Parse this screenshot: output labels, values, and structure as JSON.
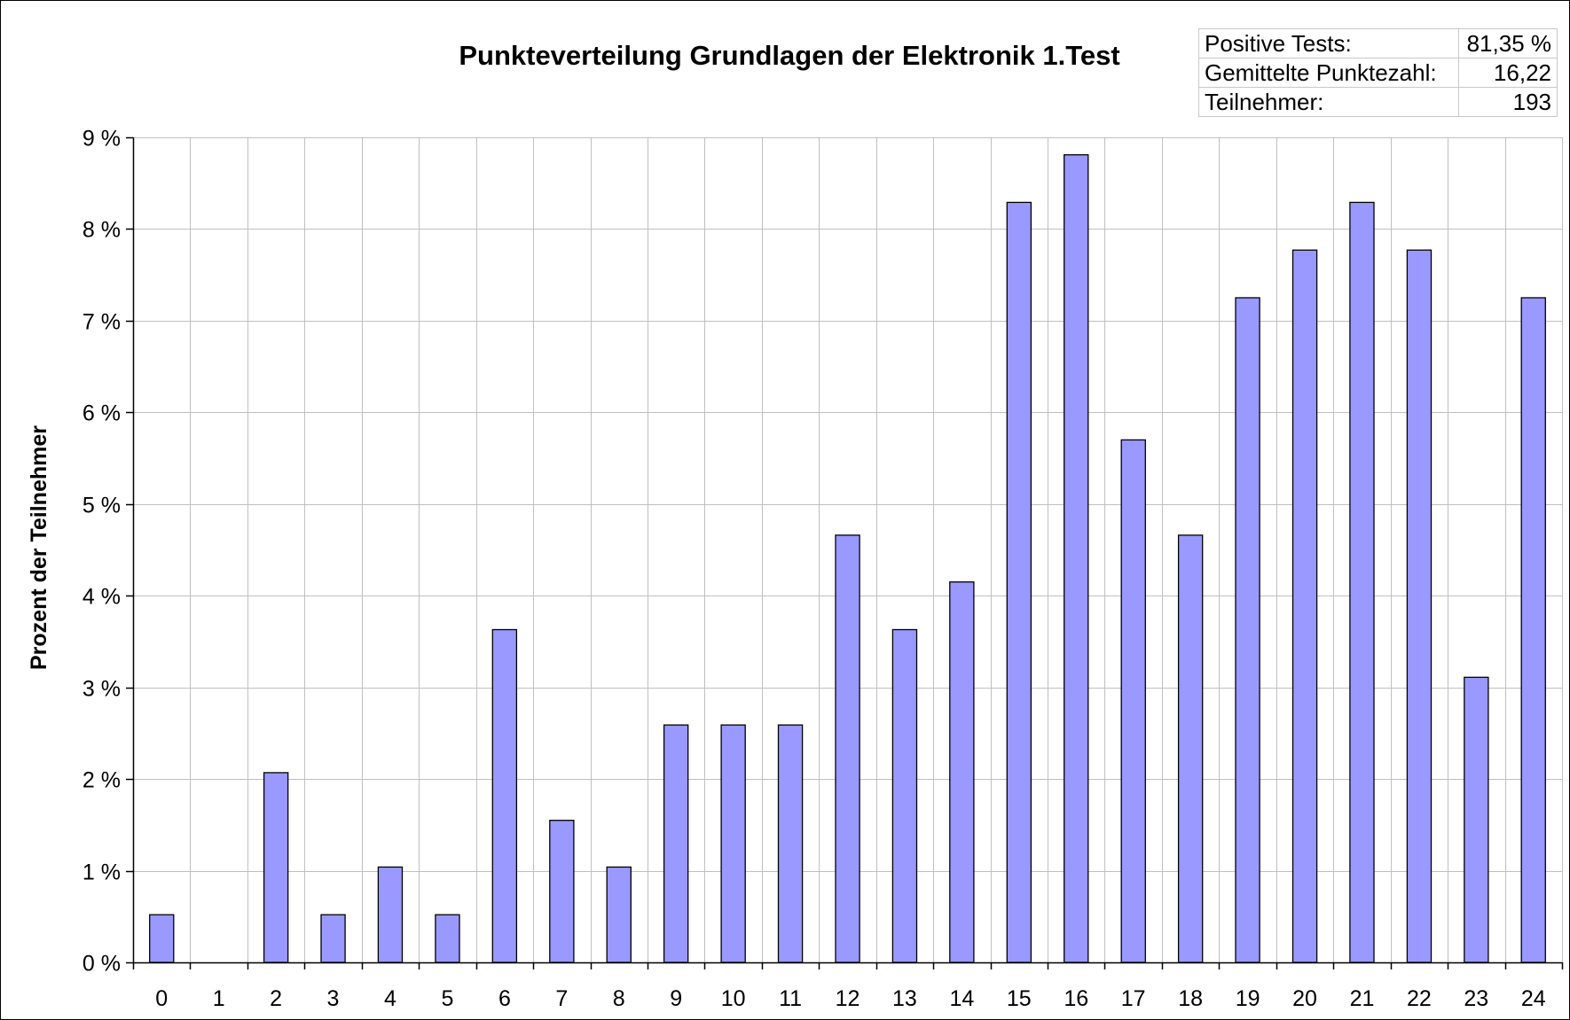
{
  "chart_data": {
    "type": "bar",
    "title": "Punkteverteilung Grundlagen der Elektronik 1.Test",
    "xlabel": "",
    "ylabel": "Prozent der Teilnehmer",
    "categories": [
      "0",
      "1",
      "2",
      "3",
      "4",
      "5",
      "6",
      "7",
      "8",
      "9",
      "10",
      "11",
      "12",
      "13",
      "14",
      "15",
      "16",
      "17",
      "18",
      "19",
      "20",
      "21",
      "22",
      "23",
      "24"
    ],
    "values": [
      0.52,
      0,
      2.07,
      0.52,
      1.04,
      0.52,
      3.63,
      1.55,
      1.04,
      2.59,
      2.59,
      2.59,
      4.66,
      3.63,
      4.15,
      8.29,
      8.81,
      5.7,
      4.66,
      7.25,
      7.77,
      8.29,
      7.77,
      3.11,
      7.25
    ],
    "ylim": [
      0,
      9
    ],
    "yticks": [
      0,
      1,
      2,
      3,
      4,
      5,
      6,
      7,
      8,
      9
    ],
    "ytick_labels": [
      "0 %",
      "1 %",
      "2 %",
      "3 %",
      "4 %",
      "5 %",
      "6 %",
      "7 %",
      "8 %",
      "9 %"
    ],
    "grid": true,
    "bar_color": "#9999ff",
    "bar_edge_color": "#000000",
    "grid_color": "#c0c0c0"
  },
  "stats": [
    {
      "label": "Positive Tests:",
      "value": "81,35 %"
    },
    {
      "label": "Gemittelte Punktezahl:",
      "value": "16,22"
    },
    {
      "label": "Teilnehmer:",
      "value": "193"
    }
  ]
}
